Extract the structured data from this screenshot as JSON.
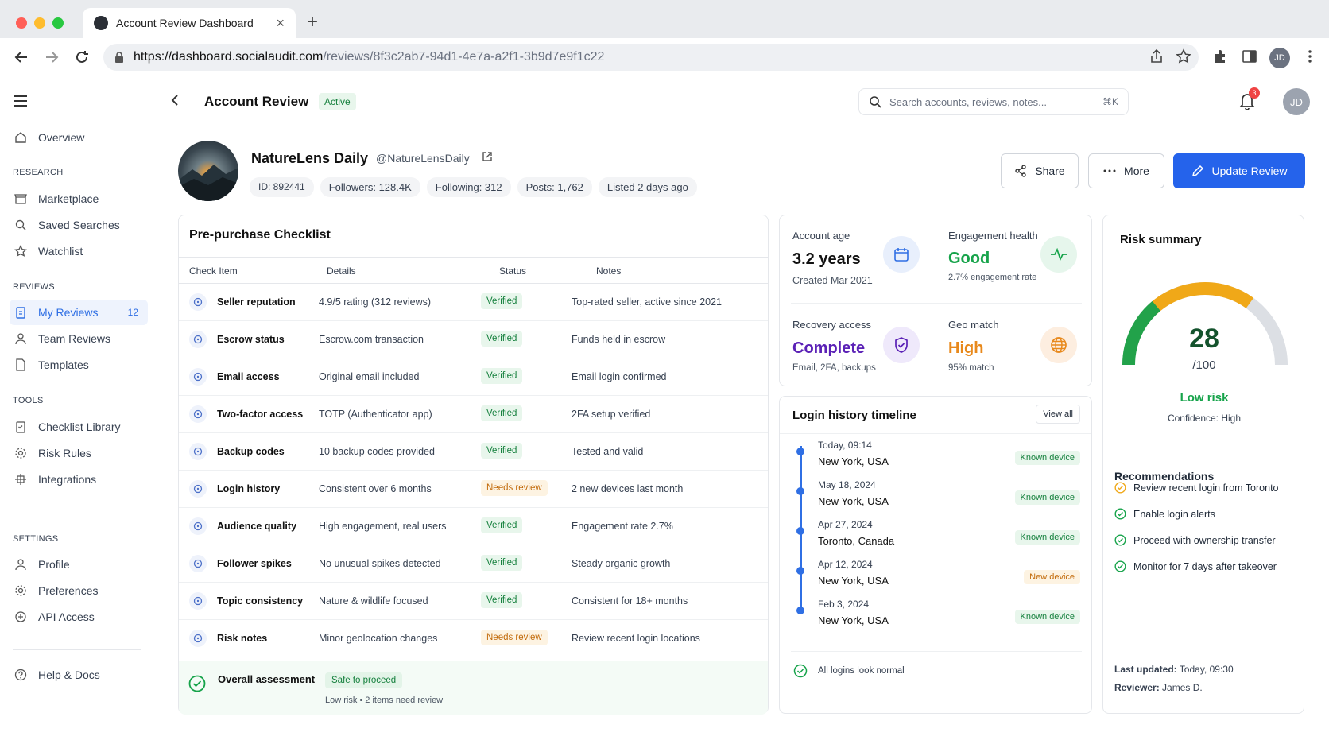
{
  "browser": {
    "tab_title": "Account Review Dashboard",
    "url_host": "https://dashboard.socialaudit.com",
    "url_path": "/reviews/8f3c2ab7-94d1-4e7a-a2f1-3b9d7e9f1c22",
    "profile_initials": "JD"
  },
  "sidebar": {
    "overview": "Overview",
    "research_title": "RESEARCH",
    "research": [
      "Marketplace",
      "Saved Searches",
      "Watchlist"
    ],
    "reviews_title": "REVIEWS",
    "reviews": [
      "My Reviews",
      "Team Reviews",
      "Templates"
    ],
    "my_reviews_count": "12",
    "tools_title": "TOOLS",
    "tools": [
      "Checklist Library",
      "Risk Rules",
      "Integrations"
    ],
    "settings_title": "SETTINGS",
    "settings": [
      "Profile",
      "Preferences",
      "API Access"
    ],
    "help": "Help & Docs"
  },
  "header": {
    "title": "Account Review",
    "status": "Active",
    "search_placeholder": "Search accounts, reviews, notes...",
    "search_shortcut": "⌘K",
    "notifications": "3",
    "user_initials": "JD"
  },
  "account": {
    "name": "NatureLens Daily",
    "handle": "@NatureLensDaily",
    "id": "ID: 892441",
    "followers": "Followers: 128.4K",
    "following": "Following: 312",
    "posts": "Posts: 1,762",
    "listed": "Listed 2 days ago"
  },
  "actions": {
    "share": "Share",
    "more": "More",
    "update": "Update Review"
  },
  "checklist": {
    "title": "Pre-purchase Checklist",
    "columns": [
      "Check Item",
      "Details",
      "Status",
      "Notes"
    ],
    "rows": [
      {
        "item": "Seller reputation",
        "details": "4.9/5 rating (312 reviews)",
        "status": "Verified",
        "notes": "Top-rated seller, active since 2021"
      },
      {
        "item": "Escrow status",
        "details": "Escrow.com transaction",
        "status": "Verified",
        "notes": "Funds held in escrow"
      },
      {
        "item": "Email access",
        "details": "Original email included",
        "status": "Verified",
        "notes": "Email login confirmed"
      },
      {
        "item": "Two-factor access",
        "details": "TOTP (Authenticator app)",
        "status": "Verified",
        "notes": "2FA setup verified"
      },
      {
        "item": "Backup codes",
        "details": "10 backup codes provided",
        "status": "Verified",
        "notes": "Tested and valid"
      },
      {
        "item": "Login history",
        "details": "Consistent over 6 months",
        "status": "Needs review",
        "notes": "2 new devices last month"
      },
      {
        "item": "Audience quality",
        "details": "High engagement, real users",
        "status": "Verified",
        "notes": "Engagement rate 2.7%"
      },
      {
        "item": "Follower spikes",
        "details": "No unusual spikes detected",
        "status": "Verified",
        "notes": "Steady organic growth"
      },
      {
        "item": "Topic consistency",
        "details": "Nature & wildlife focused",
        "status": "Verified",
        "notes": "Consistent for 18+ months"
      },
      {
        "item": "Risk notes",
        "details": "Minor geolocation changes",
        "status": "Needs review",
        "notes": "Review recent login locations"
      }
    ],
    "overall_label": "Overall assessment",
    "overall_badge": "Safe to proceed",
    "overall_sub": "Low risk • 2 items need review"
  },
  "stats": {
    "age_label": "Account age",
    "age_value": "3.2 years",
    "age_sub": "Created Mar 2021",
    "eng_label": "Engagement health",
    "eng_value": "Good",
    "eng_sub": "2.7% engagement rate",
    "rec_label": "Recovery access",
    "rec_value": "Complete",
    "rec_sub": "Email, 2FA, backups",
    "geo_label": "Geo match",
    "geo_value": "High",
    "geo_sub": "95% match"
  },
  "timeline": {
    "title": "Login history timeline",
    "view_all": "View all",
    "entries": [
      {
        "time": "Today, 09:14",
        "location": "New York, USA",
        "device": "Known device"
      },
      {
        "time": "May 18, 2024",
        "location": "New York, USA",
        "device": "Known device"
      },
      {
        "time": "Apr 27, 2024",
        "location": "Toronto, Canada",
        "device": "Known device"
      },
      {
        "time": "Apr 12, 2024",
        "location": "New York, USA",
        "device": "New device"
      },
      {
        "time": "Feb 3, 2024",
        "location": "New York, USA",
        "device": "Known device"
      }
    ],
    "footer": "All logins look normal"
  },
  "risk": {
    "title": "Risk summary",
    "score": "28",
    "score_max": "/100",
    "score_fraction": 0.28,
    "level": "Low risk",
    "confidence": "Confidence: High",
    "rec_title": "Recommendations",
    "recommendations": [
      "Review recent login from Toronto",
      "Enable login alerts",
      "Proceed with ownership transfer",
      "Monitor for 7 days after takeover"
    ],
    "updated_label": "Last updated:",
    "updated_value": "Today, 09:30",
    "reviewer_label": "Reviewer:",
    "reviewer_value": "James D."
  },
  "colors": {
    "accent": "#2563eb",
    "green": "#16a34a",
    "orange": "#f0a818",
    "purple": "#5b21b6",
    "amber": "#e8891c"
  }
}
